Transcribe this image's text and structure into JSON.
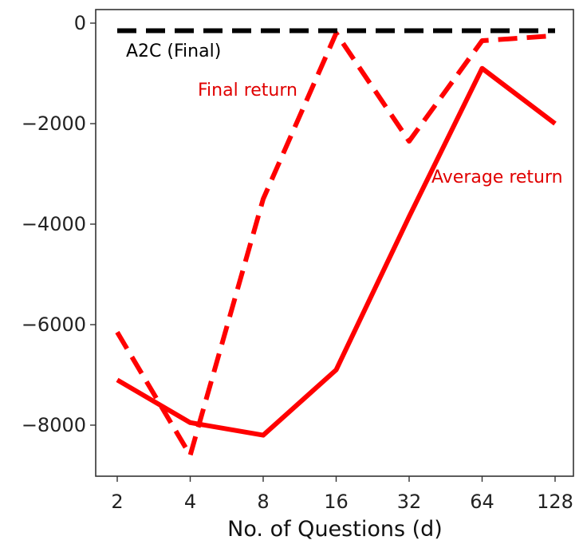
{
  "chart_data": {
    "type": "line",
    "xlabel": "No. of Questions (d)",
    "ylabel": "",
    "categories": [
      "2",
      "4",
      "8",
      "16",
      "32",
      "64",
      "128"
    ],
    "yticks": [
      0,
      -2000,
      -4000,
      -6000,
      -8000
    ],
    "ytick_labels": [
      "0",
      "−2000",
      "−4000",
      "−6000",
      "−8000"
    ],
    "ylim": [
      -9000,
      250
    ],
    "grid": false,
    "series": [
      {
        "name": "Average return",
        "color": "#ff0000",
        "style": "solid",
        "values": [
          -7100,
          -7950,
          -8200,
          -6900,
          -3850,
          -900,
          -2000
        ]
      },
      {
        "name": "Final return",
        "color": "#ff0000",
        "style": "dashed",
        "values": [
          -6150,
          -8600,
          -3500,
          -200,
          -2350,
          -350,
          -250
        ]
      },
      {
        "name": "A2C (Final)",
        "color": "#000000",
        "style": "dashed",
        "values": [
          -150,
          -150,
          -150,
          -150,
          -150,
          -150,
          -150
        ]
      }
    ],
    "annotations": [
      {
        "text": "A2C (Final)",
        "color": "#000000"
      },
      {
        "text": "Final return",
        "color": "#e00000"
      },
      {
        "text": "Average return",
        "color": "#e00000"
      }
    ]
  }
}
